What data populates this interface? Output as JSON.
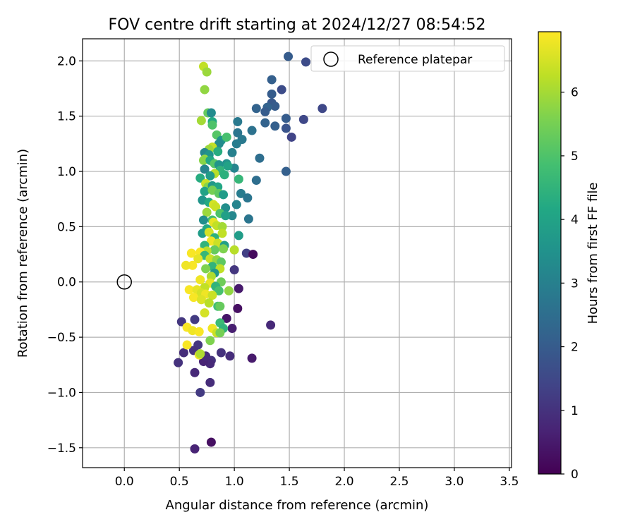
{
  "chart_data": {
    "type": "scatter",
    "title": "FOV centre drift starting at 2024/12/27 08:54:52",
    "xlabel": "Angular distance from reference (arcmin)",
    "ylabel": "Rotation from reference (arcmin)",
    "xlim": [
      -0.38,
      3.52
    ],
    "ylim": [
      -1.68,
      2.2
    ],
    "x_ticks": [
      0.0,
      0.5,
      1.0,
      1.5,
      2.0,
      2.5,
      3.0,
      3.5
    ],
    "x_tick_labels": [
      "0.0",
      "0.5",
      "1.0",
      "1.5",
      "2.0",
      "2.5",
      "3.0",
      "3.5"
    ],
    "y_ticks": [
      -1.5,
      -1.0,
      -0.5,
      0.0,
      0.5,
      1.0,
      1.5,
      2.0
    ],
    "y_tick_labels": [
      "−1.5",
      "−1.0",
      "−0.5",
      "0.0",
      "0.5",
      "1.0",
      "1.5",
      "2.0"
    ],
    "grid": true,
    "legend": {
      "placement": "top-right",
      "entries": [
        "Reference platepar"
      ]
    },
    "colorbar": {
      "label": "Hours from first FF file",
      "colormap": "viridis",
      "range": [
        0,
        6.95
      ],
      "ticks": [
        0,
        1,
        2,
        3,
        4,
        5,
        6
      ],
      "tick_labels": [
        "0",
        "1",
        "2",
        "3",
        "4",
        "5",
        "6"
      ]
    },
    "reference_point": {
      "x": 0.0,
      "y": 0.0
    },
    "points": [
      {
        "x": 1.49,
        "y": 2.04,
        "h": 2.0
      },
      {
        "x": 1.65,
        "y": 1.99,
        "h": 1.6
      },
      {
        "x": 1.8,
        "y": 1.57,
        "h": 1.5
      },
      {
        "x": 1.63,
        "y": 1.47,
        "h": 1.5
      },
      {
        "x": 1.52,
        "y": 1.31,
        "h": 1.4
      },
      {
        "x": 1.47,
        "y": 1.39,
        "h": 1.8
      },
      {
        "x": 1.47,
        "y": 1.48,
        "h": 2.0
      },
      {
        "x": 1.43,
        "y": 1.74,
        "h": 1.6
      },
      {
        "x": 1.34,
        "y": 1.83,
        "h": 2.1
      },
      {
        "x": 1.34,
        "y": 1.7,
        "h": 2.0
      },
      {
        "x": 1.34,
        "y": 1.62,
        "h": 1.9
      },
      {
        "x": 1.37,
        "y": 1.59,
        "h": 2.0
      },
      {
        "x": 1.3,
        "y": 1.58,
        "h": 2.2
      },
      {
        "x": 1.28,
        "y": 1.54,
        "h": 2.0
      },
      {
        "x": 1.2,
        "y": 1.57,
        "h": 2.2
      },
      {
        "x": 1.28,
        "y": 1.44,
        "h": 2.2
      },
      {
        "x": 1.37,
        "y": 1.41,
        "h": 2.1
      },
      {
        "x": 1.47,
        "y": 1.0,
        "h": 2.1
      },
      {
        "x": 1.23,
        "y": 1.12,
        "h": 2.5
      },
      {
        "x": 1.16,
        "y": 1.37,
        "h": 2.6
      },
      {
        "x": 1.03,
        "y": 1.45,
        "h": 2.8
      },
      {
        "x": 1.03,
        "y": 1.35,
        "h": 2.7
      },
      {
        "x": 1.07,
        "y": 1.29,
        "h": 2.8
      },
      {
        "x": 1.02,
        "y": 1.25,
        "h": 2.9
      },
      {
        "x": 0.98,
        "y": 1.17,
        "h": 3.0
      },
      {
        "x": 1.0,
        "y": 1.03,
        "h": 3.1
      },
      {
        "x": 1.2,
        "y": 0.92,
        "h": 2.5
      },
      {
        "x": 1.06,
        "y": 0.8,
        "h": 2.9
      },
      {
        "x": 1.12,
        "y": 0.76,
        "h": 2.7
      },
      {
        "x": 1.02,
        "y": 0.7,
        "h": 3.1
      },
      {
        "x": 0.98,
        "y": 0.6,
        "h": 3.2
      },
      {
        "x": 1.13,
        "y": 0.57,
        "h": 2.7
      },
      {
        "x": 1.04,
        "y": 0.93,
        "h": 4.6
      },
      {
        "x": 1.04,
        "y": 0.42,
        "h": 3.8
      },
      {
        "x": 1.11,
        "y": 0.26,
        "h": 1.3
      },
      {
        "x": 1.17,
        "y": 0.25,
        "h": 0.2
      },
      {
        "x": 1.0,
        "y": 0.11,
        "h": 1.1
      },
      {
        "x": 1.04,
        "y": -0.06,
        "h": 0.5
      },
      {
        "x": 1.03,
        "y": -0.24,
        "h": 0.3
      },
      {
        "x": 0.98,
        "y": -0.42,
        "h": 0.6
      },
      {
        "x": 0.93,
        "y": -0.33,
        "h": 0.4
      },
      {
        "x": 1.33,
        "y": -0.39,
        "h": 0.8
      },
      {
        "x": 0.88,
        "y": -0.64,
        "h": 1.0
      },
      {
        "x": 0.96,
        "y": -0.67,
        "h": 0.9
      },
      {
        "x": 1.16,
        "y": -0.69,
        "h": 0.5
      },
      {
        "x": 0.79,
        "y": -0.71,
        "h": 1.0
      },
      {
        "x": 0.78,
        "y": -0.74,
        "h": 0.8
      },
      {
        "x": 0.72,
        "y": -0.72,
        "h": 0.7
      },
      {
        "x": 0.74,
        "y": -0.67,
        "h": 0.9
      },
      {
        "x": 0.67,
        "y": -0.57,
        "h": 1.1
      },
      {
        "x": 0.63,
        "y": -0.62,
        "h": 1.0
      },
      {
        "x": 0.54,
        "y": -0.64,
        "h": 0.9
      },
      {
        "x": 0.49,
        "y": -0.73,
        "h": 1.0
      },
      {
        "x": 0.52,
        "y": -0.36,
        "h": 1.1
      },
      {
        "x": 0.64,
        "y": -0.34,
        "h": 1.2
      },
      {
        "x": 0.64,
        "y": -0.82,
        "h": 0.8
      },
      {
        "x": 0.69,
        "y": -1.0,
        "h": 1.2
      },
      {
        "x": 0.78,
        "y": -0.91,
        "h": 0.9
      },
      {
        "x": 0.79,
        "y": -1.45,
        "h": 0.3
      },
      {
        "x": 0.64,
        "y": -1.51,
        "h": 0.7
      },
      {
        "x": 0.72,
        "y": 1.95,
        "h": 6.3
      },
      {
        "x": 0.75,
        "y": 1.9,
        "h": 5.9
      },
      {
        "x": 0.73,
        "y": 1.74,
        "h": 5.8
      },
      {
        "x": 0.76,
        "y": 1.53,
        "h": 5.3
      },
      {
        "x": 0.79,
        "y": 1.53,
        "h": 3.3
      },
      {
        "x": 0.7,
        "y": 1.46,
        "h": 6.0
      },
      {
        "x": 0.8,
        "y": 1.45,
        "h": 4.2
      },
      {
        "x": 0.8,
        "y": 1.42,
        "h": 5.0
      },
      {
        "x": 0.84,
        "y": 1.33,
        "h": 5.1
      },
      {
        "x": 0.88,
        "y": 1.28,
        "h": 3.6
      },
      {
        "x": 0.93,
        "y": 1.31,
        "h": 4.9
      },
      {
        "x": 0.86,
        "y": 1.25,
        "h": 3.3
      },
      {
        "x": 0.8,
        "y": 1.22,
        "h": 6.3
      },
      {
        "x": 0.77,
        "y": 1.2,
        "h": 5.9
      },
      {
        "x": 0.73,
        "y": 1.17,
        "h": 3.2
      },
      {
        "x": 0.77,
        "y": 1.15,
        "h": 3.6
      },
      {
        "x": 0.85,
        "y": 1.18,
        "h": 4.3
      },
      {
        "x": 0.73,
        "y": 1.11,
        "h": 5.9
      },
      {
        "x": 0.72,
        "y": 1.1,
        "h": 5.7
      },
      {
        "x": 0.78,
        "y": 1.1,
        "h": 4.2
      },
      {
        "x": 0.82,
        "y": 1.07,
        "h": 5.1
      },
      {
        "x": 0.86,
        "y": 1.06,
        "h": 3.6
      },
      {
        "x": 0.93,
        "y": 1.07,
        "h": 3.5
      },
      {
        "x": 0.94,
        "y": 1.05,
        "h": 4.0
      },
      {
        "x": 0.87,
        "y": 1.01,
        "h": 4.5
      },
      {
        "x": 0.73,
        "y": 1.02,
        "h": 3.1
      },
      {
        "x": 0.82,
        "y": 0.98,
        "h": 6.2
      },
      {
        "x": 0.78,
        "y": 0.96,
        "h": 3.8
      },
      {
        "x": 0.91,
        "y": 0.97,
        "h": 4.4
      },
      {
        "x": 0.69,
        "y": 0.94,
        "h": 4.3
      },
      {
        "x": 0.74,
        "y": 0.89,
        "h": 6.4
      },
      {
        "x": 0.76,
        "y": 0.86,
        "h": 5.7
      },
      {
        "x": 0.8,
        "y": 0.87,
        "h": 3.7
      },
      {
        "x": 0.85,
        "y": 0.86,
        "h": 4.1
      },
      {
        "x": 0.73,
        "y": 0.82,
        "h": 4.0
      },
      {
        "x": 0.8,
        "y": 0.83,
        "h": 5.5
      },
      {
        "x": 0.86,
        "y": 0.8,
        "h": 5.2
      },
      {
        "x": 0.9,
        "y": 0.79,
        "h": 3.8
      },
      {
        "x": 0.71,
        "y": 0.74,
        "h": 3.6
      },
      {
        "x": 0.77,
        "y": 0.72,
        "h": 4.2
      },
      {
        "x": 0.81,
        "y": 0.7,
        "h": 6.5
      },
      {
        "x": 0.83,
        "y": 0.68,
        "h": 6.4
      },
      {
        "x": 0.92,
        "y": 0.67,
        "h": 3.4
      },
      {
        "x": 0.75,
        "y": 0.63,
        "h": 5.9
      },
      {
        "x": 0.87,
        "y": 0.62,
        "h": 5.0
      },
      {
        "x": 0.92,
        "y": 0.6,
        "h": 3.9
      },
      {
        "x": 0.8,
        "y": 0.56,
        "h": 4.8
      },
      {
        "x": 0.72,
        "y": 0.56,
        "h": 3.4
      },
      {
        "x": 0.81,
        "y": 0.54,
        "h": 6.7
      },
      {
        "x": 0.84,
        "y": 0.51,
        "h": 6.3
      },
      {
        "x": 0.89,
        "y": 0.5,
        "h": 6.0
      },
      {
        "x": 0.75,
        "y": 0.48,
        "h": 4.2
      },
      {
        "x": 0.71,
        "y": 0.44,
        "h": 3.8
      },
      {
        "x": 0.77,
        "y": 0.45,
        "h": 6.5
      },
      {
        "x": 0.89,
        "y": 0.44,
        "h": 6.3
      },
      {
        "x": 0.82,
        "y": 0.4,
        "h": 4.4
      },
      {
        "x": 0.79,
        "y": 0.37,
        "h": 6.8
      },
      {
        "x": 0.85,
        "y": 0.35,
        "h": 6.4
      },
      {
        "x": 0.73,
        "y": 0.33,
        "h": 4.5
      },
      {
        "x": 0.91,
        "y": 0.33,
        "h": 3.9
      },
      {
        "x": 0.9,
        "y": 0.3,
        "h": 5.6
      },
      {
        "x": 0.82,
        "y": 0.29,
        "h": 5.3
      },
      {
        "x": 0.75,
        "y": 0.28,
        "h": 6.2
      },
      {
        "x": 0.69,
        "y": 0.27,
        "h": 6.9
      },
      {
        "x": 1.0,
        "y": 0.29,
        "h": 6.2
      },
      {
        "x": 0.61,
        "y": 0.26,
        "h": 6.9
      },
      {
        "x": 0.73,
        "y": 0.24,
        "h": 4.6
      },
      {
        "x": 0.78,
        "y": 0.21,
        "h": 6.4
      },
      {
        "x": 0.67,
        "y": 0.21,
        "h": 6.7
      },
      {
        "x": 0.84,
        "y": 0.2,
        "h": 5.8
      },
      {
        "x": 0.88,
        "y": 0.18,
        "h": 5.2
      },
      {
        "x": 0.62,
        "y": 0.15,
        "h": 6.9
      },
      {
        "x": 0.56,
        "y": 0.15,
        "h": 6.8
      },
      {
        "x": 0.8,
        "y": 0.14,
        "h": 4.5
      },
      {
        "x": 0.74,
        "y": 0.12,
        "h": 5.6
      },
      {
        "x": 0.87,
        "y": 0.12,
        "h": 6.3
      },
      {
        "x": 0.82,
        "y": 0.08,
        "h": 3.7
      },
      {
        "x": 0.79,
        "y": 0.05,
        "h": 6.1
      },
      {
        "x": 0.69,
        "y": 0.02,
        "h": 6.8
      },
      {
        "x": 0.88,
        "y": 0.0,
        "h": 5.4
      },
      {
        "x": 0.78,
        "y": -0.01,
        "h": 6.7
      },
      {
        "x": 0.73,
        "y": -0.05,
        "h": 6.3
      },
      {
        "x": 0.83,
        "y": -0.04,
        "h": 4.5
      },
      {
        "x": 0.59,
        "y": -0.07,
        "h": 6.9
      },
      {
        "x": 0.66,
        "y": -0.07,
        "h": 6.7
      },
      {
        "x": 0.7,
        "y": -0.1,
        "h": 6.5
      },
      {
        "x": 0.74,
        "y": -0.11,
        "h": 6.8
      },
      {
        "x": 0.95,
        "y": -0.08,
        "h": 5.8
      },
      {
        "x": 0.86,
        "y": -0.08,
        "h": 4.9
      },
      {
        "x": 0.8,
        "y": -0.12,
        "h": 6.4
      },
      {
        "x": 0.63,
        "y": -0.14,
        "h": 6.9
      },
      {
        "x": 0.7,
        "y": -0.16,
        "h": 6.6
      },
      {
        "x": 0.77,
        "y": -0.19,
        "h": 6.2
      },
      {
        "x": 0.85,
        "y": -0.22,
        "h": 4.8
      },
      {
        "x": 0.87,
        "y": -0.22,
        "h": 5.3
      },
      {
        "x": 0.73,
        "y": -0.28,
        "h": 6.5
      },
      {
        "x": 0.87,
        "y": -0.37,
        "h": 4.7
      },
      {
        "x": 0.9,
        "y": -0.42,
        "h": 4.5
      },
      {
        "x": 0.8,
        "y": -0.42,
        "h": 6.8
      },
      {
        "x": 0.84,
        "y": -0.46,
        "h": 6.4
      },
      {
        "x": 0.87,
        "y": -0.46,
        "h": 5.5
      },
      {
        "x": 0.57,
        "y": -0.41,
        "h": 6.9
      },
      {
        "x": 0.62,
        "y": -0.44,
        "h": 6.8
      },
      {
        "x": 0.68,
        "y": -0.45,
        "h": 6.9
      },
      {
        "x": 0.78,
        "y": -0.53,
        "h": 5.6
      },
      {
        "x": 0.57,
        "y": -0.57,
        "h": 6.9
      },
      {
        "x": 0.68,
        "y": -0.66,
        "h": 6.8
      },
      {
        "x": 0.69,
        "y": -0.65,
        "h": 6.1
      }
    ]
  }
}
